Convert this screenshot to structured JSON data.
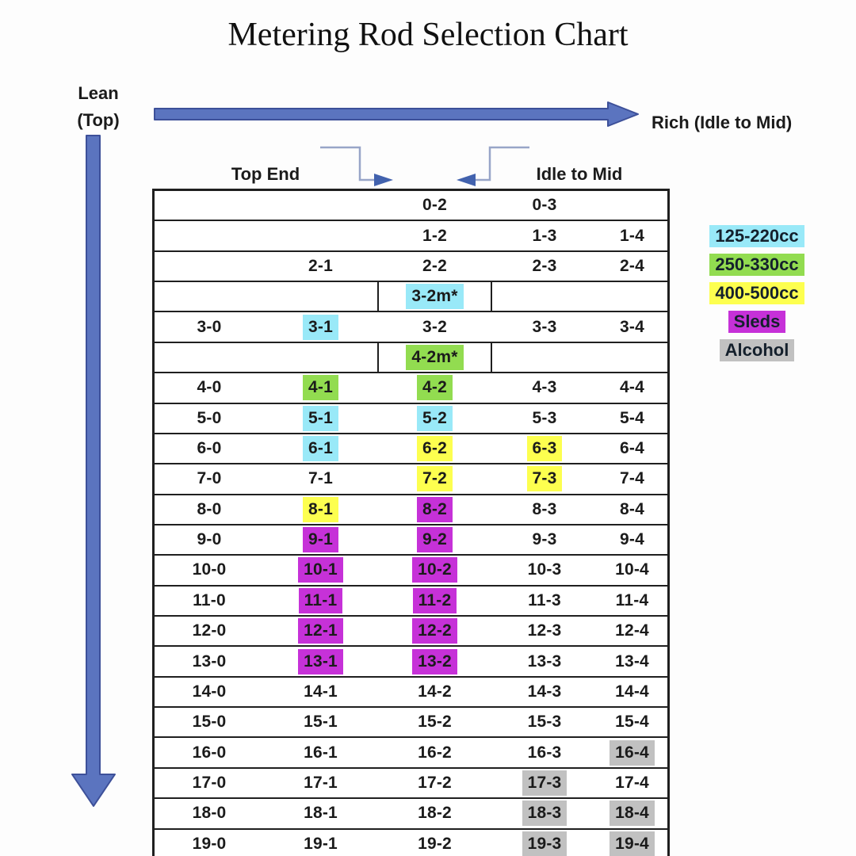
{
  "title": "Metering Rod Selection Chart",
  "annotations": {
    "lean_line1": "Lean",
    "lean_line2": "(Top)",
    "rich_label": "Rich (Idle to Mid)",
    "top_end_label": "Top End",
    "idle_mid_label": "Idle to Mid"
  },
  "colors": {
    "cyan": "#99e9f8",
    "green": "#92dc50",
    "yellow": "#fdff4f",
    "magenta": "#c631d8",
    "gray": "#c1c1c1",
    "arrow_fill": "#5b74bf",
    "arrow_stroke": "#3d5099",
    "elbow_line": "#98a5c8",
    "elbow_head": "#4262ae"
  },
  "legend": [
    {
      "label": "125-220cc",
      "color": "cyan"
    },
    {
      "label": "250-330cc",
      "color": "green"
    },
    {
      "label": "400-500cc",
      "color": "yellow"
    },
    {
      "label": "Sleds",
      "color": "magenta"
    },
    {
      "label": "Alcohol",
      "color": "gray"
    }
  ],
  "table": {
    "rows": [
      {
        "c": [
          {
            "t": ""
          },
          {
            "t": ""
          },
          {
            "t": "0-2"
          },
          {
            "t": "0-3"
          },
          {
            "t": ""
          }
        ]
      },
      {
        "c": [
          {
            "t": ""
          },
          {
            "t": ""
          },
          {
            "t": "1-2"
          },
          {
            "t": "1-3"
          },
          {
            "t": "1-4"
          }
        ]
      },
      {
        "c": [
          {
            "t": ""
          },
          {
            "t": "2-1"
          },
          {
            "t": "2-2"
          },
          {
            "t": "2-3"
          },
          {
            "t": "2-4"
          }
        ]
      },
      {
        "m": {
          "t": "3-2m*",
          "h": "cyan"
        }
      },
      {
        "c": [
          {
            "t": "3-0"
          },
          {
            "t": "3-1",
            "h": "cyan"
          },
          {
            "t": "3-2"
          },
          {
            "t": "3-3"
          },
          {
            "t": "3-4"
          }
        ]
      },
      {
        "m": {
          "t": "4-2m*",
          "h": "green"
        }
      },
      {
        "c": [
          {
            "t": "4-0"
          },
          {
            "t": "4-1",
            "h": "green"
          },
          {
            "t": "4-2",
            "h": "green"
          },
          {
            "t": "4-3"
          },
          {
            "t": "4-4"
          }
        ]
      },
      {
        "c": [
          {
            "t": "5-0"
          },
          {
            "t": "5-1",
            "h": "cyan"
          },
          {
            "t": "5-2",
            "h": "cyan"
          },
          {
            "t": "5-3"
          },
          {
            "t": "5-4"
          }
        ]
      },
      {
        "c": [
          {
            "t": "6-0"
          },
          {
            "t": "6-1",
            "h": "cyan"
          },
          {
            "t": "6-2",
            "h": "yellow"
          },
          {
            "t": "6-3",
            "h": "yellow"
          },
          {
            "t": "6-4"
          }
        ]
      },
      {
        "c": [
          {
            "t": "7-0"
          },
          {
            "t": "7-1"
          },
          {
            "t": "7-2",
            "h": "yellow"
          },
          {
            "t": "7-3",
            "h": "yellow"
          },
          {
            "t": "7-4"
          }
        ]
      },
      {
        "c": [
          {
            "t": "8-0"
          },
          {
            "t": "8-1",
            "h": "yellow"
          },
          {
            "t": "8-2",
            "h": "magenta"
          },
          {
            "t": "8-3"
          },
          {
            "t": "8-4"
          }
        ]
      },
      {
        "c": [
          {
            "t": "9-0"
          },
          {
            "t": "9-1",
            "h": "magenta"
          },
          {
            "t": "9-2",
            "h": "magenta"
          },
          {
            "t": "9-3"
          },
          {
            "t": "9-4"
          }
        ]
      },
      {
        "c": [
          {
            "t": "10-0"
          },
          {
            "t": "10-1",
            "h": "magenta"
          },
          {
            "t": "10-2",
            "h": "magenta"
          },
          {
            "t": "10-3"
          },
          {
            "t": "10-4"
          }
        ]
      },
      {
        "c": [
          {
            "t": "11-0"
          },
          {
            "t": "11-1",
            "h": "magenta"
          },
          {
            "t": "11-2",
            "h": "magenta"
          },
          {
            "t": "11-3"
          },
          {
            "t": "11-4"
          }
        ]
      },
      {
        "c": [
          {
            "t": "12-0"
          },
          {
            "t": "12-1",
            "h": "magenta"
          },
          {
            "t": "12-2",
            "h": "magenta"
          },
          {
            "t": "12-3"
          },
          {
            "t": "12-4"
          }
        ]
      },
      {
        "c": [
          {
            "t": "13-0"
          },
          {
            "t": "13-1",
            "h": "magenta"
          },
          {
            "t": "13-2",
            "h": "magenta"
          },
          {
            "t": "13-3"
          },
          {
            "t": "13-4"
          }
        ]
      },
      {
        "c": [
          {
            "t": "14-0"
          },
          {
            "t": "14-1"
          },
          {
            "t": "14-2"
          },
          {
            "t": "14-3"
          },
          {
            "t": "14-4"
          }
        ]
      },
      {
        "c": [
          {
            "t": "15-0"
          },
          {
            "t": "15-1"
          },
          {
            "t": "15-2"
          },
          {
            "t": "15-3"
          },
          {
            "t": "15-4"
          }
        ]
      },
      {
        "c": [
          {
            "t": "16-0"
          },
          {
            "t": "16-1"
          },
          {
            "t": "16-2"
          },
          {
            "t": "16-3"
          },
          {
            "t": "16-4",
            "h": "gray"
          }
        ]
      },
      {
        "c": [
          {
            "t": "17-0"
          },
          {
            "t": "17-1"
          },
          {
            "t": "17-2"
          },
          {
            "t": "17-3",
            "h": "gray"
          },
          {
            "t": "17-4"
          }
        ]
      },
      {
        "c": [
          {
            "t": "18-0"
          },
          {
            "t": "18-1"
          },
          {
            "t": "18-2"
          },
          {
            "t": "18-3",
            "h": "gray"
          },
          {
            "t": "18-4",
            "h": "gray"
          }
        ]
      },
      {
        "c": [
          {
            "t": "19-0"
          },
          {
            "t": "19-1"
          },
          {
            "t": "19-2"
          },
          {
            "t": "19-3",
            "h": "gray"
          },
          {
            "t": "19-4",
            "h": "gray"
          }
        ]
      }
    ]
  }
}
